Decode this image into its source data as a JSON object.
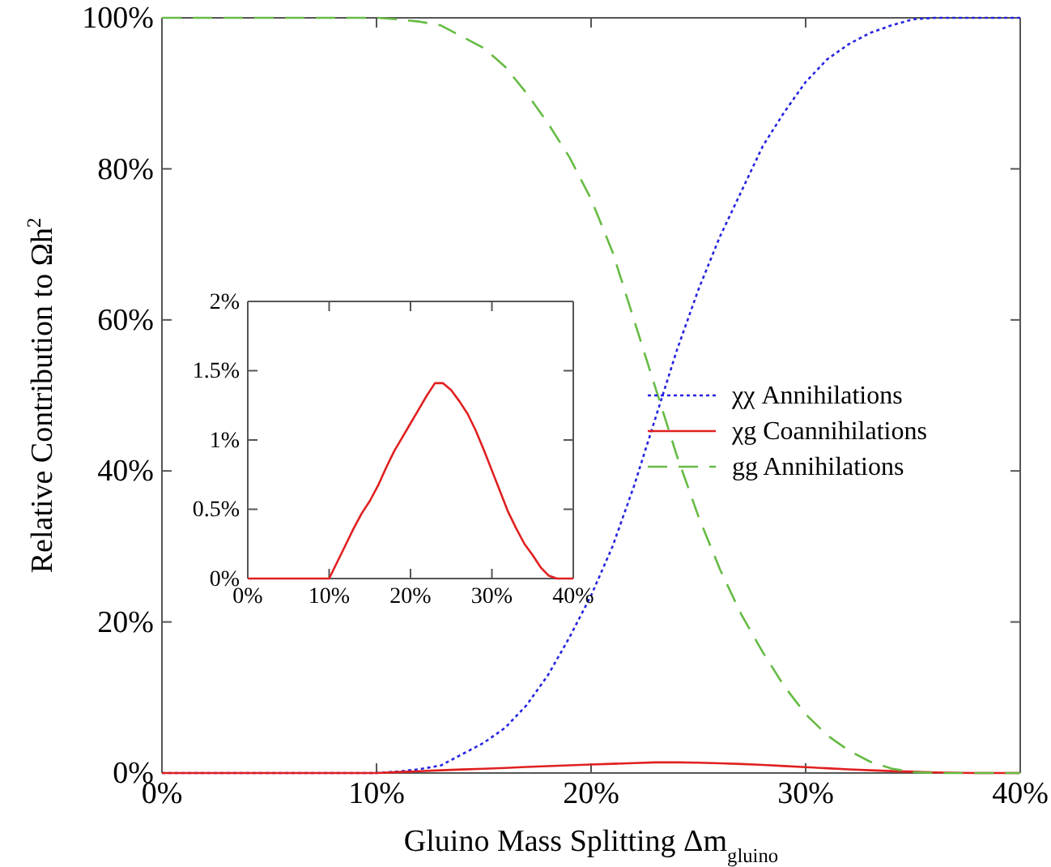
{
  "chart_data": [
    {
      "type": "line",
      "xlabel": "Gluino Mass Splitting Δm$_{gluino}$",
      "ylabel": "Relative Contribution to Ωh$^{2}$",
      "x": [
        0,
        10,
        11,
        12,
        13,
        14,
        15,
        16,
        17,
        18,
        19,
        20,
        21,
        22,
        23,
        24,
        25,
        26,
        27,
        28,
        29,
        30,
        31,
        32,
        33,
        34,
        35,
        36,
        37,
        38,
        40
      ],
      "xlim": [
        0,
        40
      ],
      "xticks": [
        {
          "value": 0,
          "label": "0%"
        },
        {
          "value": 10,
          "label": "10%"
        },
        {
          "value": 20,
          "label": "20%"
        },
        {
          "value": 30,
          "label": "30%"
        },
        {
          "value": 40,
          "label": "40%"
        }
      ],
      "ylim": [
        0,
        100
      ],
      "yticks": [
        {
          "value": 0,
          "label": "0%"
        },
        {
          "value": 20,
          "label": "20%"
        },
        {
          "value": 40,
          "label": "40%"
        },
        {
          "value": 60,
          "label": "60%"
        },
        {
          "value": 80,
          "label": "80%"
        },
        {
          "value": 100,
          "label": "100%"
        }
      ],
      "legend": "right",
      "grid": false,
      "series": [
        {
          "name": "χχ Annihilations",
          "color": "#2424e0",
          "line_style": "dotted",
          "values": [
            0,
            0,
            0.2,
            0.5,
            1,
            2.5,
            4,
            6,
            9,
            13,
            18,
            23.5,
            30,
            38,
            47,
            56,
            64,
            71,
            77,
            83,
            87.5,
            91.5,
            94.5,
            96.5,
            98,
            99,
            99.8,
            100,
            100,
            100,
            100
          ]
        },
        {
          "name": "χg Coannihilations",
          "color": "#e02020",
          "line_style": "solid",
          "values": [
            0,
            0,
            0.12,
            0.24,
            0.36,
            0.47,
            0.56,
            0.67,
            0.8,
            0.92,
            1.02,
            1.12,
            1.22,
            1.32,
            1.41,
            1.41,
            1.36,
            1.28,
            1.19,
            1.07,
            0.93,
            0.78,
            0.63,
            0.48,
            0.36,
            0.25,
            0.17,
            0.08,
            0.02,
            0,
            0
          ]
        },
        {
          "name": "gg Annihilations",
          "color": "#66bb44",
          "line_style": "dashed",
          "values": [
            100,
            100,
            99.8,
            99.5,
            99,
            97.5,
            96,
            93.5,
            90,
            86,
            81.5,
            76,
            69,
            60,
            51,
            42,
            34,
            27,
            21,
            16,
            11.5,
            7.8,
            5,
            3,
            1.5,
            0.6,
            0.1,
            0,
            0,
            0,
            0
          ]
        }
      ]
    },
    {
      "type": "line",
      "x": [
        0,
        10,
        11,
        12,
        13,
        14,
        15,
        16,
        17,
        18,
        19,
        20,
        21,
        22,
        23,
        24,
        25,
        26,
        27,
        28,
        29,
        30,
        31,
        32,
        33,
        34,
        35,
        36,
        37,
        38,
        40
      ],
      "xlim": [
        0,
        40
      ],
      "xticks": [
        {
          "value": 0,
          "label": "0%"
        },
        {
          "value": 10,
          "label": "10%"
        },
        {
          "value": 20,
          "label": "20%"
        },
        {
          "value": 30,
          "label": "30%"
        },
        {
          "value": 40,
          "label": "40%"
        }
      ],
      "ylim": [
        0,
        2
      ],
      "yticks": [
        {
          "value": 0,
          "label": "0%"
        },
        {
          "value": 0.5,
          "label": "0.5%"
        },
        {
          "value": 1,
          "label": "1%"
        },
        {
          "value": 1.5,
          "label": "1.5%"
        },
        {
          "value": 2,
          "label": "2%"
        }
      ],
      "grid": false,
      "series": [
        {
          "color": "#e02020",
          "line_style": "solid",
          "values": [
            0,
            0,
            0.12,
            0.24,
            0.36,
            0.47,
            0.56,
            0.67,
            0.8,
            0.92,
            1.02,
            1.12,
            1.22,
            1.32,
            1.41,
            1.41,
            1.36,
            1.28,
            1.19,
            1.07,
            0.93,
            0.78,
            0.63,
            0.48,
            0.36,
            0.25,
            0.17,
            0.08,
            0.02,
            0,
            0
          ]
        }
      ]
    }
  ]
}
